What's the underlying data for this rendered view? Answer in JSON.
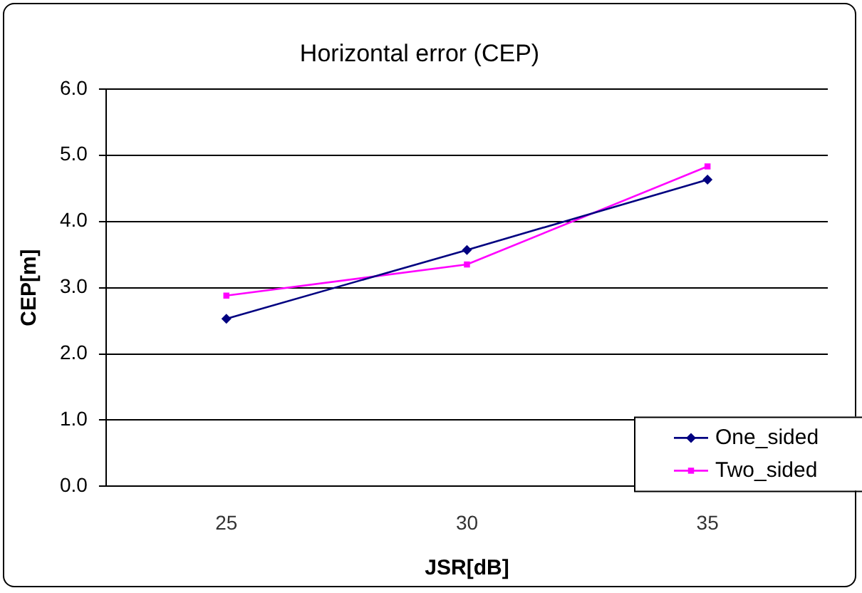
{
  "chart_data": {
    "type": "line",
    "title": "Horizontal error (CEP)",
    "xlabel": "JSR[dB]",
    "ylabel": "CEP[m]",
    "categories": [
      "25",
      "30",
      "35"
    ],
    "series": [
      {
        "name": "One_sided",
        "color": "#000080",
        "marker": "diamond",
        "values": [
          2.53,
          3.57,
          4.63
        ]
      },
      {
        "name": "Two_sided",
        "color": "#ff00ff",
        "marker": "square",
        "values": [
          2.88,
          3.35,
          4.83
        ]
      }
    ],
    "ylim": [
      0,
      6
    ],
    "yticks": [
      {
        "value": 0,
        "label": "0.0"
      },
      {
        "value": 1,
        "label": "1.0"
      },
      {
        "value": 2,
        "label": "2.0"
      },
      {
        "value": 3,
        "label": "3.0"
      },
      {
        "value": 4,
        "label": "4.0"
      },
      {
        "value": 5,
        "label": "5.0"
      },
      {
        "value": 6,
        "label": "6.0"
      }
    ],
    "grid": "y",
    "legend": "bottom right",
    "line_style": "solid"
  }
}
